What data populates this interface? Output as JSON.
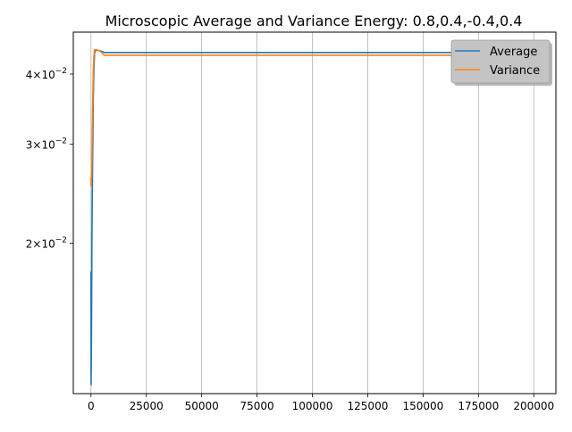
{
  "chart_data": {
    "type": "line",
    "title": "Microscopic Average and Variance Energy: 0.8,0.4,-0.4,0.4",
    "xlabel": "",
    "ylabel": "",
    "xscale": "linear",
    "yscale": "log",
    "xlim": [
      -8000,
      210000
    ],
    "ylim": [
      0.0108,
      0.0475
    ],
    "x_ticks": [
      0,
      25000,
      50000,
      75000,
      100000,
      125000,
      150000,
      175000,
      200000
    ],
    "x_tick_labels": [
      "0",
      "25000",
      "50000",
      "75000",
      "100000",
      "125000",
      "150000",
      "175000",
      "200000"
    ],
    "y_ticks": [
      0.02,
      0.03,
      0.04
    ],
    "y_tick_labels": [
      {
        "base": "2×10",
        "exp": "−2"
      },
      {
        "base": "3×10",
        "exp": "−2"
      },
      {
        "base": "4×10",
        "exp": "−2"
      }
    ],
    "grid": "x-major",
    "legend_position": "top-right",
    "series": [
      {
        "name": "Average",
        "color": "#1f77b4",
        "x": [
          0,
          50,
          100,
          200,
          300,
          400,
          600,
          800,
          1000,
          1300,
          1600,
          2000,
          2500,
          3000,
          4000,
          5000,
          6000,
          8000,
          10000,
          20000,
          50000,
          100000,
          150000,
          200000
        ],
        "y": [
          0.0178,
          0.0112,
          0.0118,
          0.0135,
          0.016,
          0.02,
          0.025,
          0.03,
          0.036,
          0.041,
          0.0435,
          0.0441,
          0.0441,
          0.0441,
          0.044,
          0.0439,
          0.0437,
          0.0437,
          0.0437,
          0.0437,
          0.0437,
          0.0437,
          0.0437,
          0.0437
        ]
      },
      {
        "name": "Variance",
        "color": "#ff7f0e",
        "x": [
          0,
          100,
          200,
          400,
          600,
          800,
          1000,
          1300,
          1600,
          2000,
          2500,
          3000,
          4000,
          5000,
          6000,
          8000,
          10000,
          20000,
          50000,
          100000,
          150000,
          200000
        ],
        "y": [
          0.0262,
          0.0253,
          0.026,
          0.028,
          0.032,
          0.036,
          0.04,
          0.043,
          0.0442,
          0.0442,
          0.0442,
          0.0441,
          0.044,
          0.0436,
          0.0432,
          0.0432,
          0.0432,
          0.0432,
          0.0432,
          0.0432,
          0.0432,
          0.0432
        ]
      }
    ]
  }
}
